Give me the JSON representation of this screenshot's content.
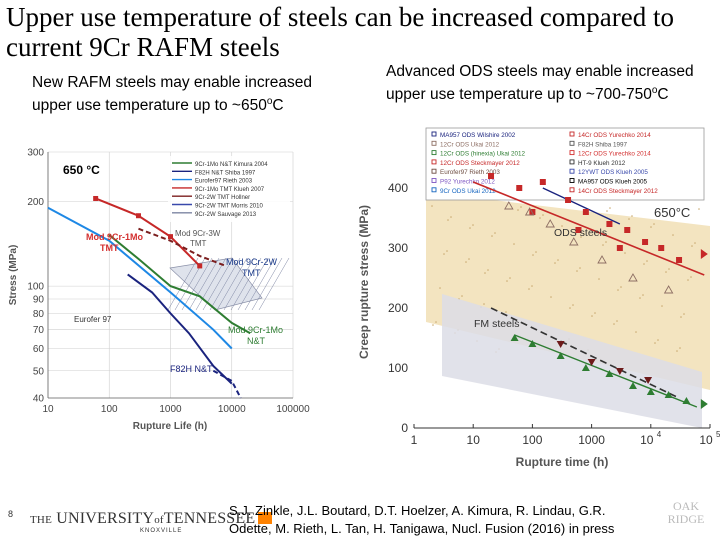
{
  "slide": {
    "title": "Upper use temperature of steels can be increased compared to current 9Cr RAFM steels",
    "left_caption_pre": "New RAFM steels may enable increased upper use temperature up to ~650",
    "left_caption_sup": "o",
    "left_caption_post": "C",
    "right_caption_pre": "Advanced ODS steels may enable increased upper use temperature up to ~700-750",
    "right_caption_sup": "o",
    "right_caption_post": "C",
    "page_number": "8",
    "university_a": "THE",
    "university_b": "UNIVERSITY",
    "university_c": "of",
    "university_d": "TENNESSEE",
    "university_sub": "KNOXVILLE",
    "citation": "S.J. Zinkle, J.L. Boutard, D.T. Hoelzer, A. Kimura, R. Lindau, G.R. Odette, M. Rieth, L. Tan, H. Tanigawa, Nucl. Fusion (2016) in press",
    "logo_text_1": "OAK",
    "logo_text_2": "RIDGE"
  },
  "chart_data": [
    {
      "type": "line",
      "xscale": "log",
      "yscale": "log",
      "xlabel": "Rupture Life (h)",
      "ylabel": "Stress (MPa)",
      "xlim": [
        10,
        100000
      ],
      "ylim": [
        40,
        300
      ],
      "x_ticks": [
        "10",
        "100",
        "1000",
        "10000",
        "100000"
      ],
      "y_ticks": [
        "40",
        "50",
        "60",
        "70",
        "80",
        "90",
        "100",
        "200",
        "300"
      ],
      "temperature_label": "650 °C",
      "legend_entries": [
        "9Cr-1Mo N&T Kimura 2004",
        "F82H N&T Shiba 1997",
        "Eurofer97 Rieth 2003",
        "9Cr-1Mo TMT Klueh 2007",
        "9Cr-2W TMT Hollner",
        "9Cr-2W TMT Morris 2010",
        "9Cr-2W Sauvage 2013"
      ],
      "annotations": [
        "Mod 9Cr-1Mo TMT",
        "Mod 9Cr-3W TMT",
        "Mod 9Cr-2W TMT",
        "Eurofer 97",
        "Mod 9Cr-1Mo N&T",
        "F82H N&T"
      ],
      "series": [
        {
          "color": "#2e7d32",
          "x": [
            100,
            300,
            1000,
            3000,
            10000,
            20000
          ],
          "y": [
            152,
            125,
            100,
            92,
            74,
            68
          ]
        },
        {
          "color": "#1a237e",
          "x": [
            200,
            500,
            1000,
            2000,
            5000,
            10000
          ],
          "y": [
            110,
            95,
            80,
            68,
            52,
            45
          ]
        },
        {
          "color": "#1e88e5",
          "x": [
            10,
            100,
            1000,
            5000,
            10000
          ],
          "y": [
            190,
            145,
            95,
            70,
            60
          ]
        },
        {
          "color": "#c62828",
          "x": [
            60,
            300,
            1000,
            3000
          ],
          "y": [
            205,
            178,
            150,
            118
          ]
        },
        {
          "color": "#7b1e1e",
          "x": [
            300,
            1000,
            3000,
            8000
          ],
          "y": [
            160,
            145,
            128,
            118
          ]
        }
      ]
    },
    {
      "type": "scatter",
      "xscale": "log",
      "xlabel": "Rupture time (h)",
      "ylabel": "Creep rupture stress (MPa)",
      "xlim": [
        1,
        100000
      ],
      "ylim": [
        0,
        500
      ],
      "x_ticks": [
        "1",
        "10",
        "100",
        "1000",
        "10",
        "4",
        "10",
        "5"
      ],
      "y_ticks": [
        "0",
        "100",
        "200",
        "300",
        "400"
      ],
      "temperature_label": "650°C",
      "band_labels": [
        "ODS steels",
        "FM steels"
      ],
      "legend_entries": [
        "MA957 ODS Wilshire 2002",
        "12Cr ODS Ukai 2012",
        "12Cr ODS (hinexia) Ukai 2012",
        "12Cr ODS Steckmayer 2012",
        "Eurofer97 Rieth 2003",
        "P92 Yurechko 2012",
        "9Cr ODS Ukai 2012",
        "14Cr ODS Yurechko 2014",
        "F82H Shiba 1997",
        "12Cr ODS Yurechko 2014",
        "HT-9 Klueh 2012",
        "12YWT ODS Klueh 2005",
        "MA957 ODS Klueh 2005",
        "14Cr ODS Steckmayer 2012"
      ],
      "trend_lines": [
        {
          "name": "ODS",
          "x": [
            10,
            80000
          ],
          "y": [
            410,
            255
          ]
        },
        {
          "name": "FM",
          "x": [
            20,
            30000
          ],
          "y": [
            200,
            50
          ]
        }
      ]
    }
  ]
}
